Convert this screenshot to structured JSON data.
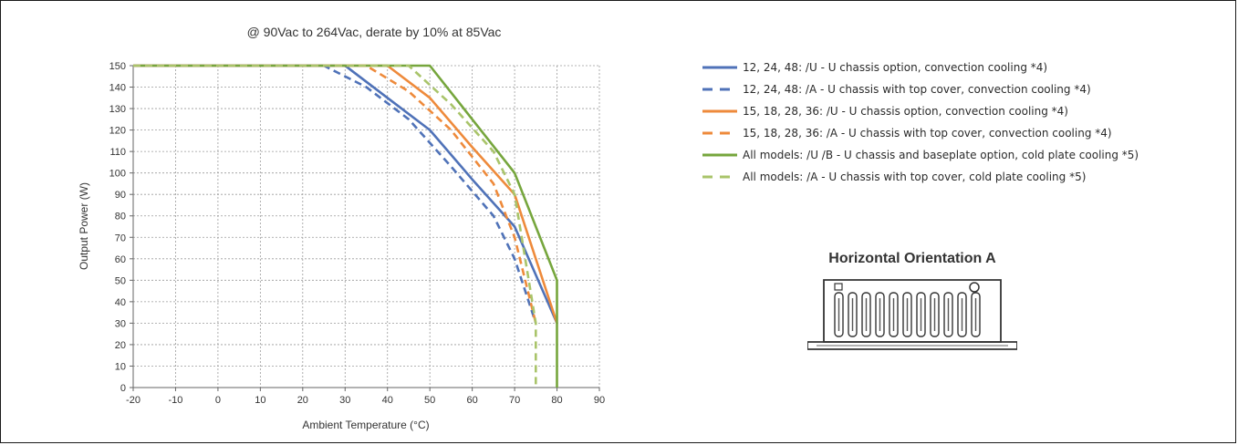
{
  "chart_data": {
    "type": "line",
    "title": "@ 90Vac to 264Vac, derate by 10% at 85Vac",
    "xlabel": "Ambient Temperature  (°C)",
    "ylabel": "Output Power  (W)",
    "xlim": [
      -20,
      90
    ],
    "ylim": [
      0,
      150
    ],
    "xticks": [
      -20,
      -10,
      0,
      10,
      20,
      30,
      40,
      50,
      60,
      70,
      80,
      90
    ],
    "yticks": [
      0,
      10,
      20,
      30,
      40,
      50,
      60,
      70,
      80,
      90,
      100,
      110,
      120,
      130,
      140,
      150
    ],
    "grid": true,
    "legend_position": "right",
    "series": [
      {
        "name": "12, 24, 48: /U - U chassis option, convection cooling *4)",
        "color": "#4f72b8",
        "style": "solid",
        "x": [
          -20,
          30,
          40,
          50,
          60,
          70,
          80
        ],
        "y": [
          150,
          150,
          135,
          120,
          97,
          75,
          30
        ]
      },
      {
        "name": "12, 24, 48: /A - U chassis with top cover, convection cooling *4)",
        "color": "#4f72b8",
        "style": "dashed",
        "x": [
          -20,
          25,
          35,
          45,
          55,
          65,
          70,
          75
        ],
        "y": [
          150,
          150,
          140,
          125,
          103,
          80,
          60,
          30
        ]
      },
      {
        "name": "15, 18, 28, 36: /U - U chassis option, convection cooling *4)",
        "color": "#ee8a3b",
        "style": "solid",
        "x": [
          -20,
          40,
          50,
          60,
          70,
          80
        ],
        "y": [
          150,
          150,
          135,
          112,
          90,
          30
        ]
      },
      {
        "name": "15, 18, 28, 36: /A - U chassis with top cover, convection cooling *4)",
        "color": "#ee8a3b",
        "style": "dashed",
        "x": [
          -20,
          35,
          45,
          55,
          65,
          70,
          75
        ],
        "y": [
          150,
          150,
          138,
          120,
          95,
          70,
          30
        ]
      },
      {
        "name": "All models: /U /B - U chassis and baseplate option, cold plate cooling *5)",
        "color": "#76a63d",
        "style": "solid",
        "x": [
          -20,
          50,
          60,
          70,
          80,
          80
        ],
        "y": [
          150,
          150,
          125,
          100,
          50,
          0
        ]
      },
      {
        "name": "All models: /A -  U chassis with top cover, cold plate cooling *5)",
        "color": "#a9c46a",
        "style": "dashed",
        "x": [
          -20,
          45,
          55,
          65,
          70,
          75,
          75
        ],
        "y": [
          150,
          150,
          132,
          110,
          90,
          30,
          0
        ]
      }
    ]
  },
  "orientation": {
    "title": "Horizontal Orientation A",
    "icon": "power-supply-chassis-icon"
  }
}
